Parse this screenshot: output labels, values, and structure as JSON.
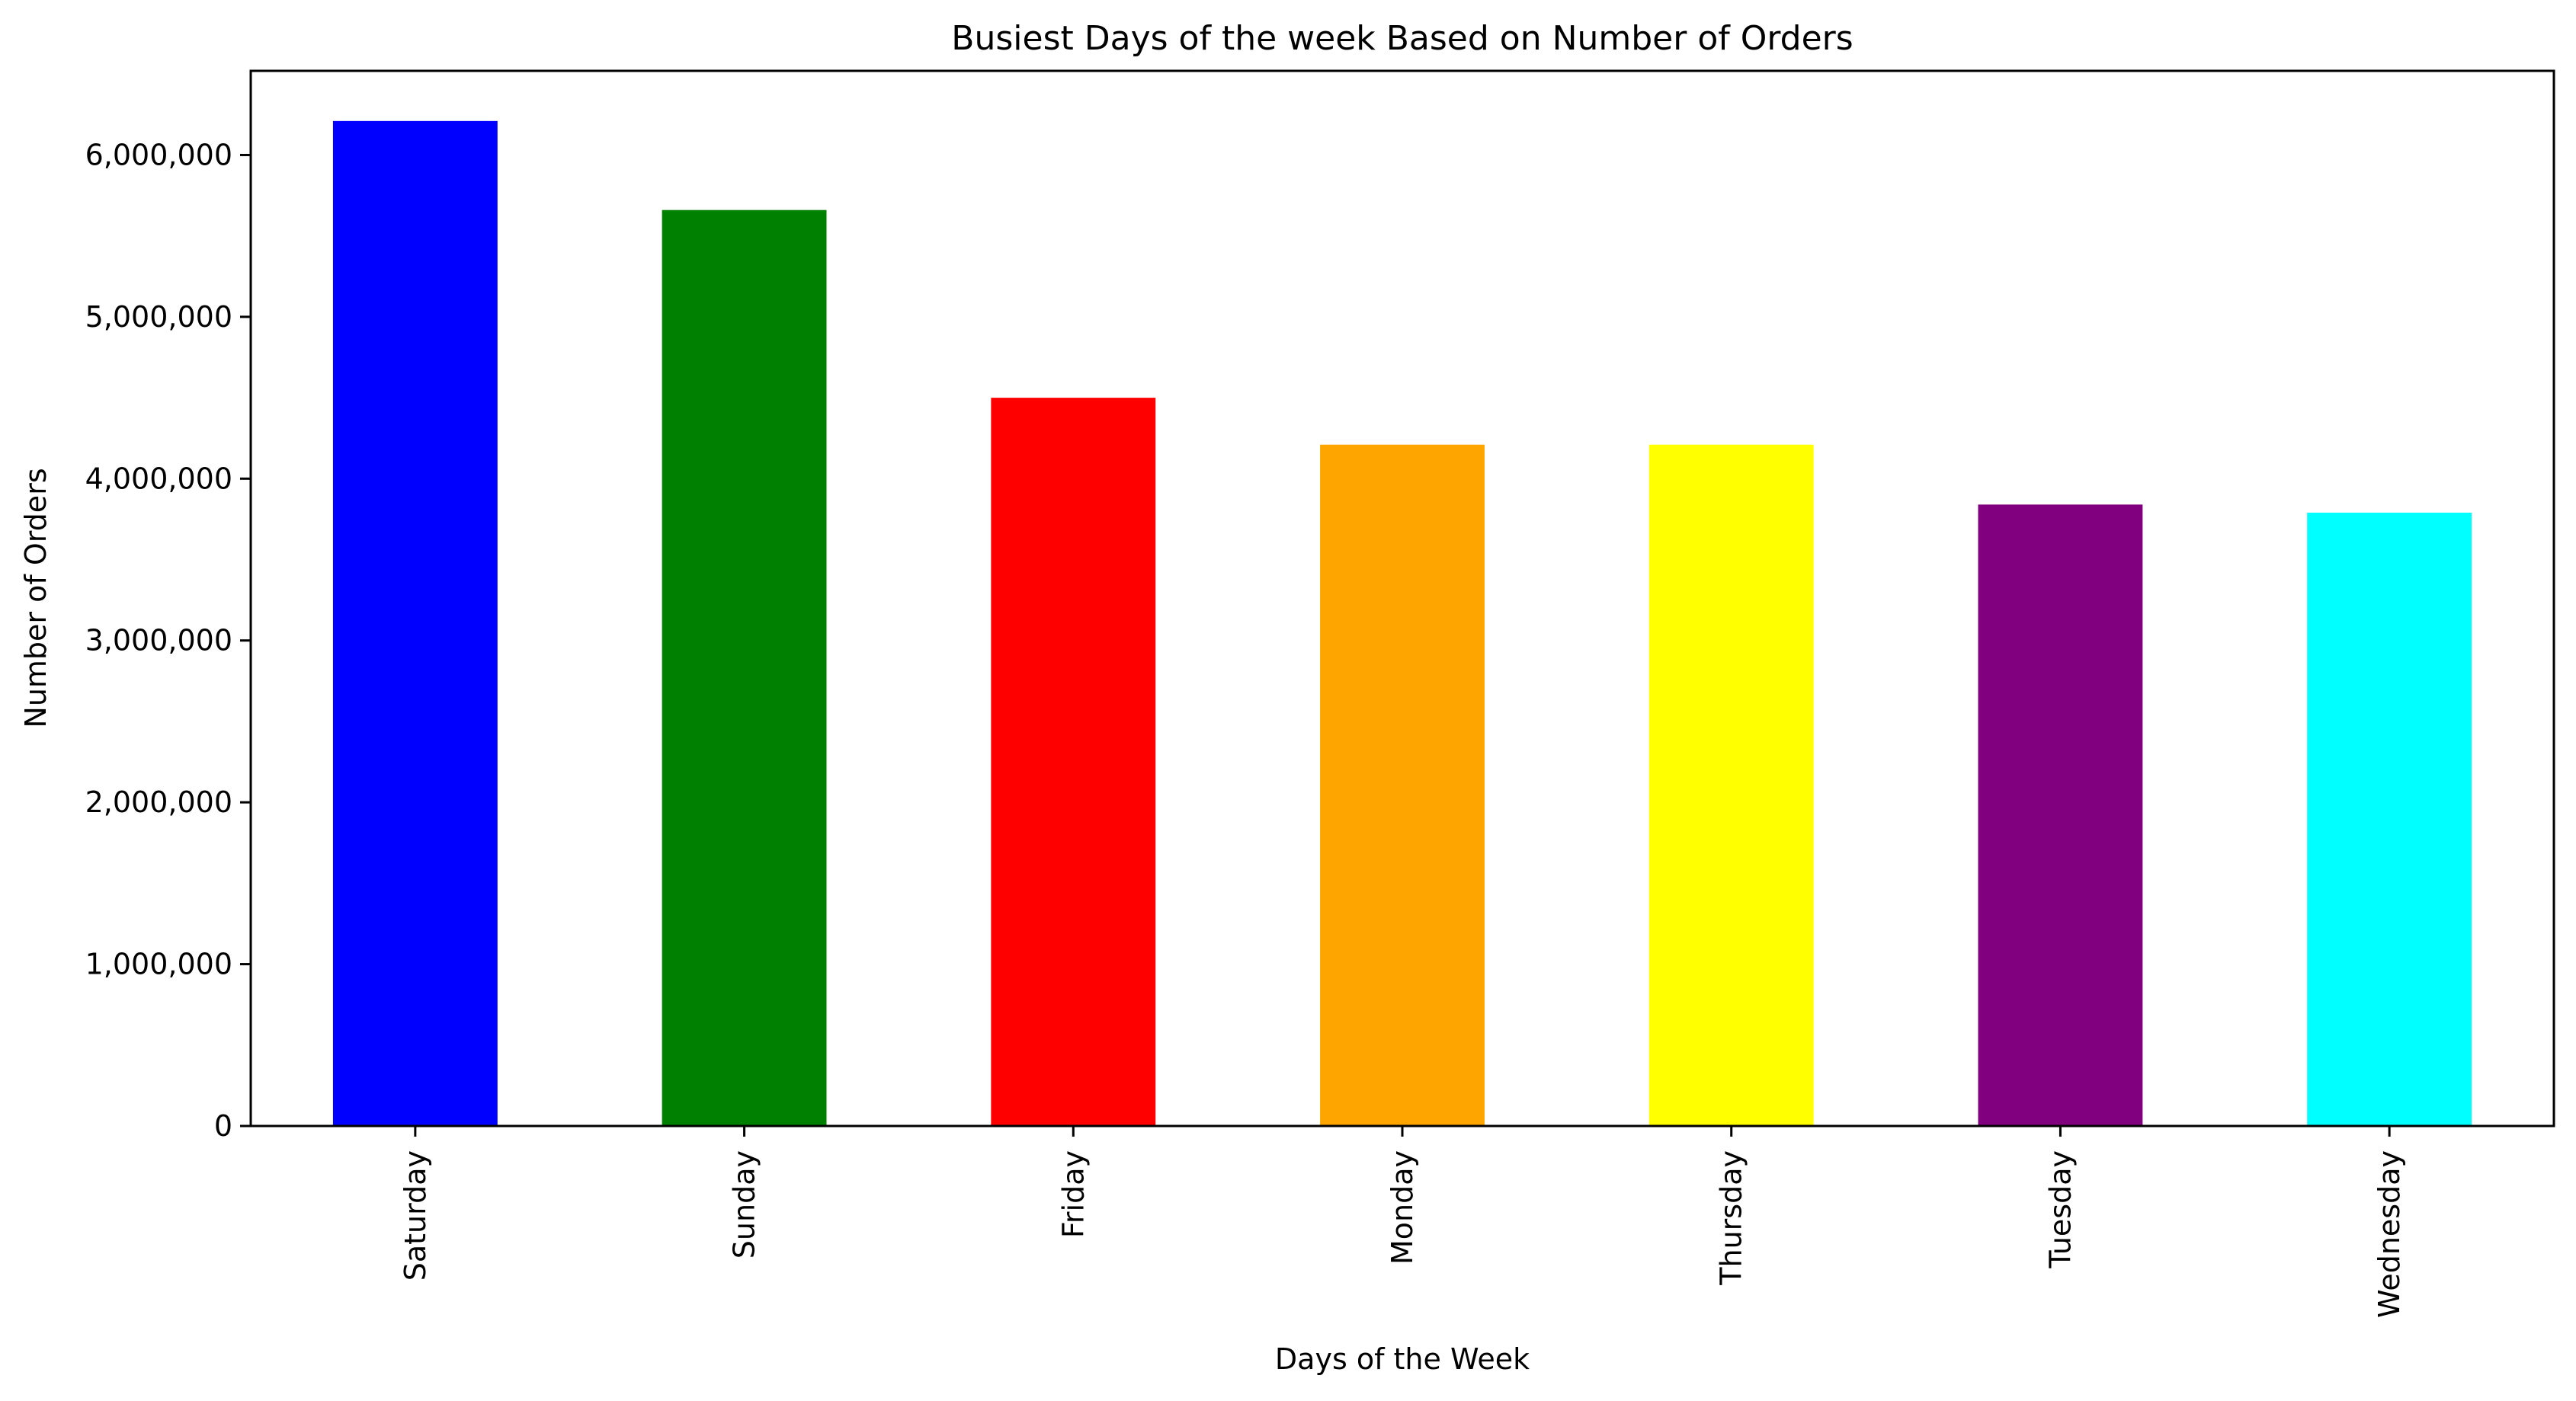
{
  "chart_data": {
    "type": "bar",
    "title": "Busiest Days of the week Based on Number of Orders",
    "xlabel": "Days of the Week",
    "ylabel": "Number of Orders",
    "categories": [
      "Saturday",
      "Sunday",
      "Friday",
      "Monday",
      "Thursday",
      "Tuesday",
      "Wednesday"
    ],
    "values": [
      6210000,
      5660000,
      4500000,
      4210000,
      4210000,
      3840000,
      3790000
    ],
    "colors": [
      "#0000ff",
      "#008000",
      "#ff0000",
      "#ffa500",
      "#ffff00",
      "#800080",
      "#00ffff"
    ],
    "ylim": [
      0,
      6520000
    ],
    "yticks": [
      0,
      1000000,
      2000000,
      3000000,
      4000000,
      5000000,
      6000000
    ],
    "ytick_labels": [
      "0",
      "1,000,000",
      "2,000,000",
      "3,000,000",
      "4,000,000",
      "5,000,000",
      "6,000,000"
    ],
    "grid": false,
    "legend": "none"
  }
}
